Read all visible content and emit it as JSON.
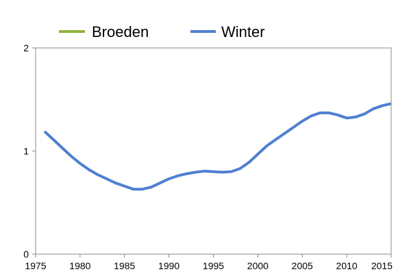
{
  "chart_data": {
    "type": "line",
    "title": "",
    "xlabel": "",
    "ylabel": "",
    "xlim": [
      1975,
      2015
    ],
    "ylim": [
      0,
      2
    ],
    "x_ticks": [
      "1975",
      "1980",
      "1985",
      "1990",
      "1995",
      "2000",
      "2005",
      "2010",
      "2015"
    ],
    "y_ticks": [
      "0",
      "1",
      "2"
    ],
    "grid": false,
    "legend_position": "top",
    "series": [
      {
        "name": "Broeden",
        "color": "#8DB43C",
        "x": [],
        "values": []
      },
      {
        "name": "Winter",
        "color": "#4F7FD0",
        "x": [
          1976,
          1977,
          1978,
          1979,
          1980,
          1981,
          1982,
          1983,
          1984,
          1985,
          1986,
          1987,
          1988,
          1989,
          1990,
          1991,
          1992,
          1993,
          1994,
          1995,
          1996,
          1997,
          1998,
          1999,
          2000,
          2001,
          2002,
          2003,
          2004,
          2005,
          2006,
          2007,
          2008,
          2009,
          2010,
          2011,
          2012,
          2013,
          2014,
          2015
        ],
        "values": [
          1.19,
          1.11,
          1.03,
          0.95,
          0.88,
          0.82,
          0.77,
          0.73,
          0.69,
          0.66,
          0.63,
          0.63,
          0.65,
          0.69,
          0.73,
          0.76,
          0.78,
          0.795,
          0.805,
          0.8,
          0.795,
          0.8,
          0.83,
          0.89,
          0.97,
          1.05,
          1.11,
          1.17,
          1.23,
          1.29,
          1.34,
          1.37,
          1.37,
          1.35,
          1.32,
          1.33,
          1.36,
          1.41,
          1.44,
          1.46
        ]
      }
    ]
  }
}
